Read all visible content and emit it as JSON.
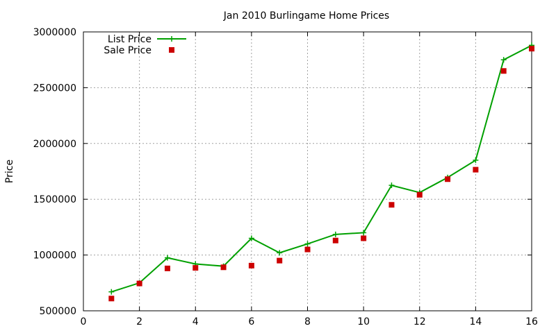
{
  "chart_data": {
    "type": "line",
    "title": "Jan 2010 Burlingame Home Prices",
    "xlabel": "",
    "ylabel": "Price",
    "xlim": [
      0,
      16
    ],
    "ylim": [
      500000,
      3000000
    ],
    "x_ticks": [
      "0",
      "2",
      "4",
      "6",
      "8",
      "10",
      "12",
      "14",
      "16"
    ],
    "y_ticks": [
      "500000",
      "1000000",
      "1500000",
      "2000000",
      "2500000",
      "3000000"
    ],
    "grid": true,
    "legend_position": "top-left",
    "series": [
      {
        "name": "List Price",
        "style": "line-points",
        "marker": "plus",
        "color": "#00a000",
        "x": [
          1,
          2,
          3,
          4,
          5,
          6,
          7,
          8,
          9,
          10,
          11,
          12,
          13,
          14,
          15,
          16
        ],
        "values": [
          670000,
          750000,
          975000,
          920000,
          900000,
          1150000,
          1020000,
          1100000,
          1185000,
          1200000,
          1625000,
          1560000,
          1695000,
          1850000,
          2750000,
          2880000
        ]
      },
      {
        "name": "Sale Price",
        "style": "points",
        "marker": "square",
        "color": "#cc0000",
        "x": [
          1,
          2,
          3,
          4,
          5,
          6,
          7,
          8,
          9,
          10,
          11,
          12,
          13,
          14,
          15,
          16
        ],
        "values": [
          610000,
          745000,
          880000,
          885000,
          890000,
          905000,
          950000,
          1050000,
          1130000,
          1150000,
          1450000,
          1540000,
          1680000,
          1765000,
          2650000,
          2850000
        ]
      }
    ]
  }
}
